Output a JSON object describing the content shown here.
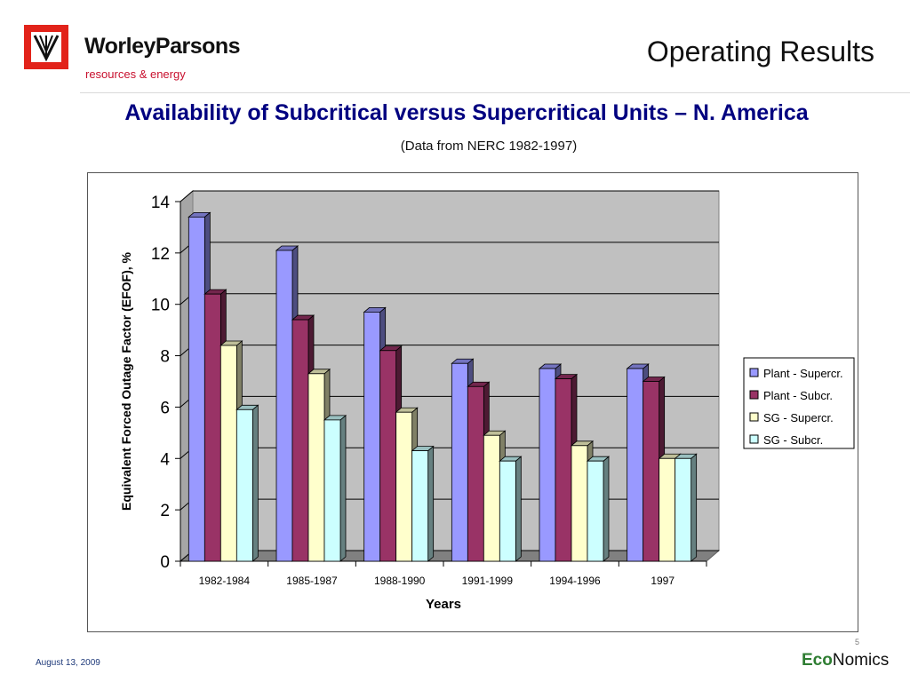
{
  "header": {
    "brand_name": "WorleyParsons",
    "brand_tagline": "resources & energy",
    "slide_title": "Operating Results"
  },
  "chart_data": {
    "type": "bar",
    "title": "Availability of Subcritical versus Supercritical Units – N. America",
    "subtitle": "(Data from NERC 1982-1997)",
    "xlabel": "Years",
    "ylabel": "Equivalent Forced Outage Factor (EFOF), %",
    "ylim": [
      0,
      14
    ],
    "yticks": [
      0,
      2,
      4,
      6,
      8,
      10,
      12,
      14
    ],
    "grid": true,
    "legend_position": "right",
    "categories": [
      "1982-1984",
      "1985-1987",
      "1988-1990",
      "1991-1999",
      "1994-1996",
      "1997"
    ],
    "series": [
      {
        "name": "Plant - Supercr.",
        "color": "#9999ff",
        "values": [
          13.4,
          12.1,
          9.7,
          7.7,
          7.5,
          7.5
        ]
      },
      {
        "name": "Plant - Subcr.",
        "color": "#993366",
        "values": [
          10.4,
          9.4,
          8.2,
          6.8,
          7.1,
          7.0
        ]
      },
      {
        "name": "SG - Supercr.",
        "color": "#ffffcc",
        "values": [
          8.4,
          7.3,
          5.8,
          4.9,
          4.5,
          4.0
        ]
      },
      {
        "name": "SG - Subcr.",
        "color": "#ccffff",
        "values": [
          5.9,
          5.5,
          4.3,
          3.9,
          3.9,
          4.0
        ]
      }
    ],
    "plot_background": "#c0c0c0"
  },
  "footer": {
    "date": "August 13, 2009",
    "page_number": "5",
    "logo_prefix": "Eco",
    "logo_suffix": "Nomics"
  }
}
